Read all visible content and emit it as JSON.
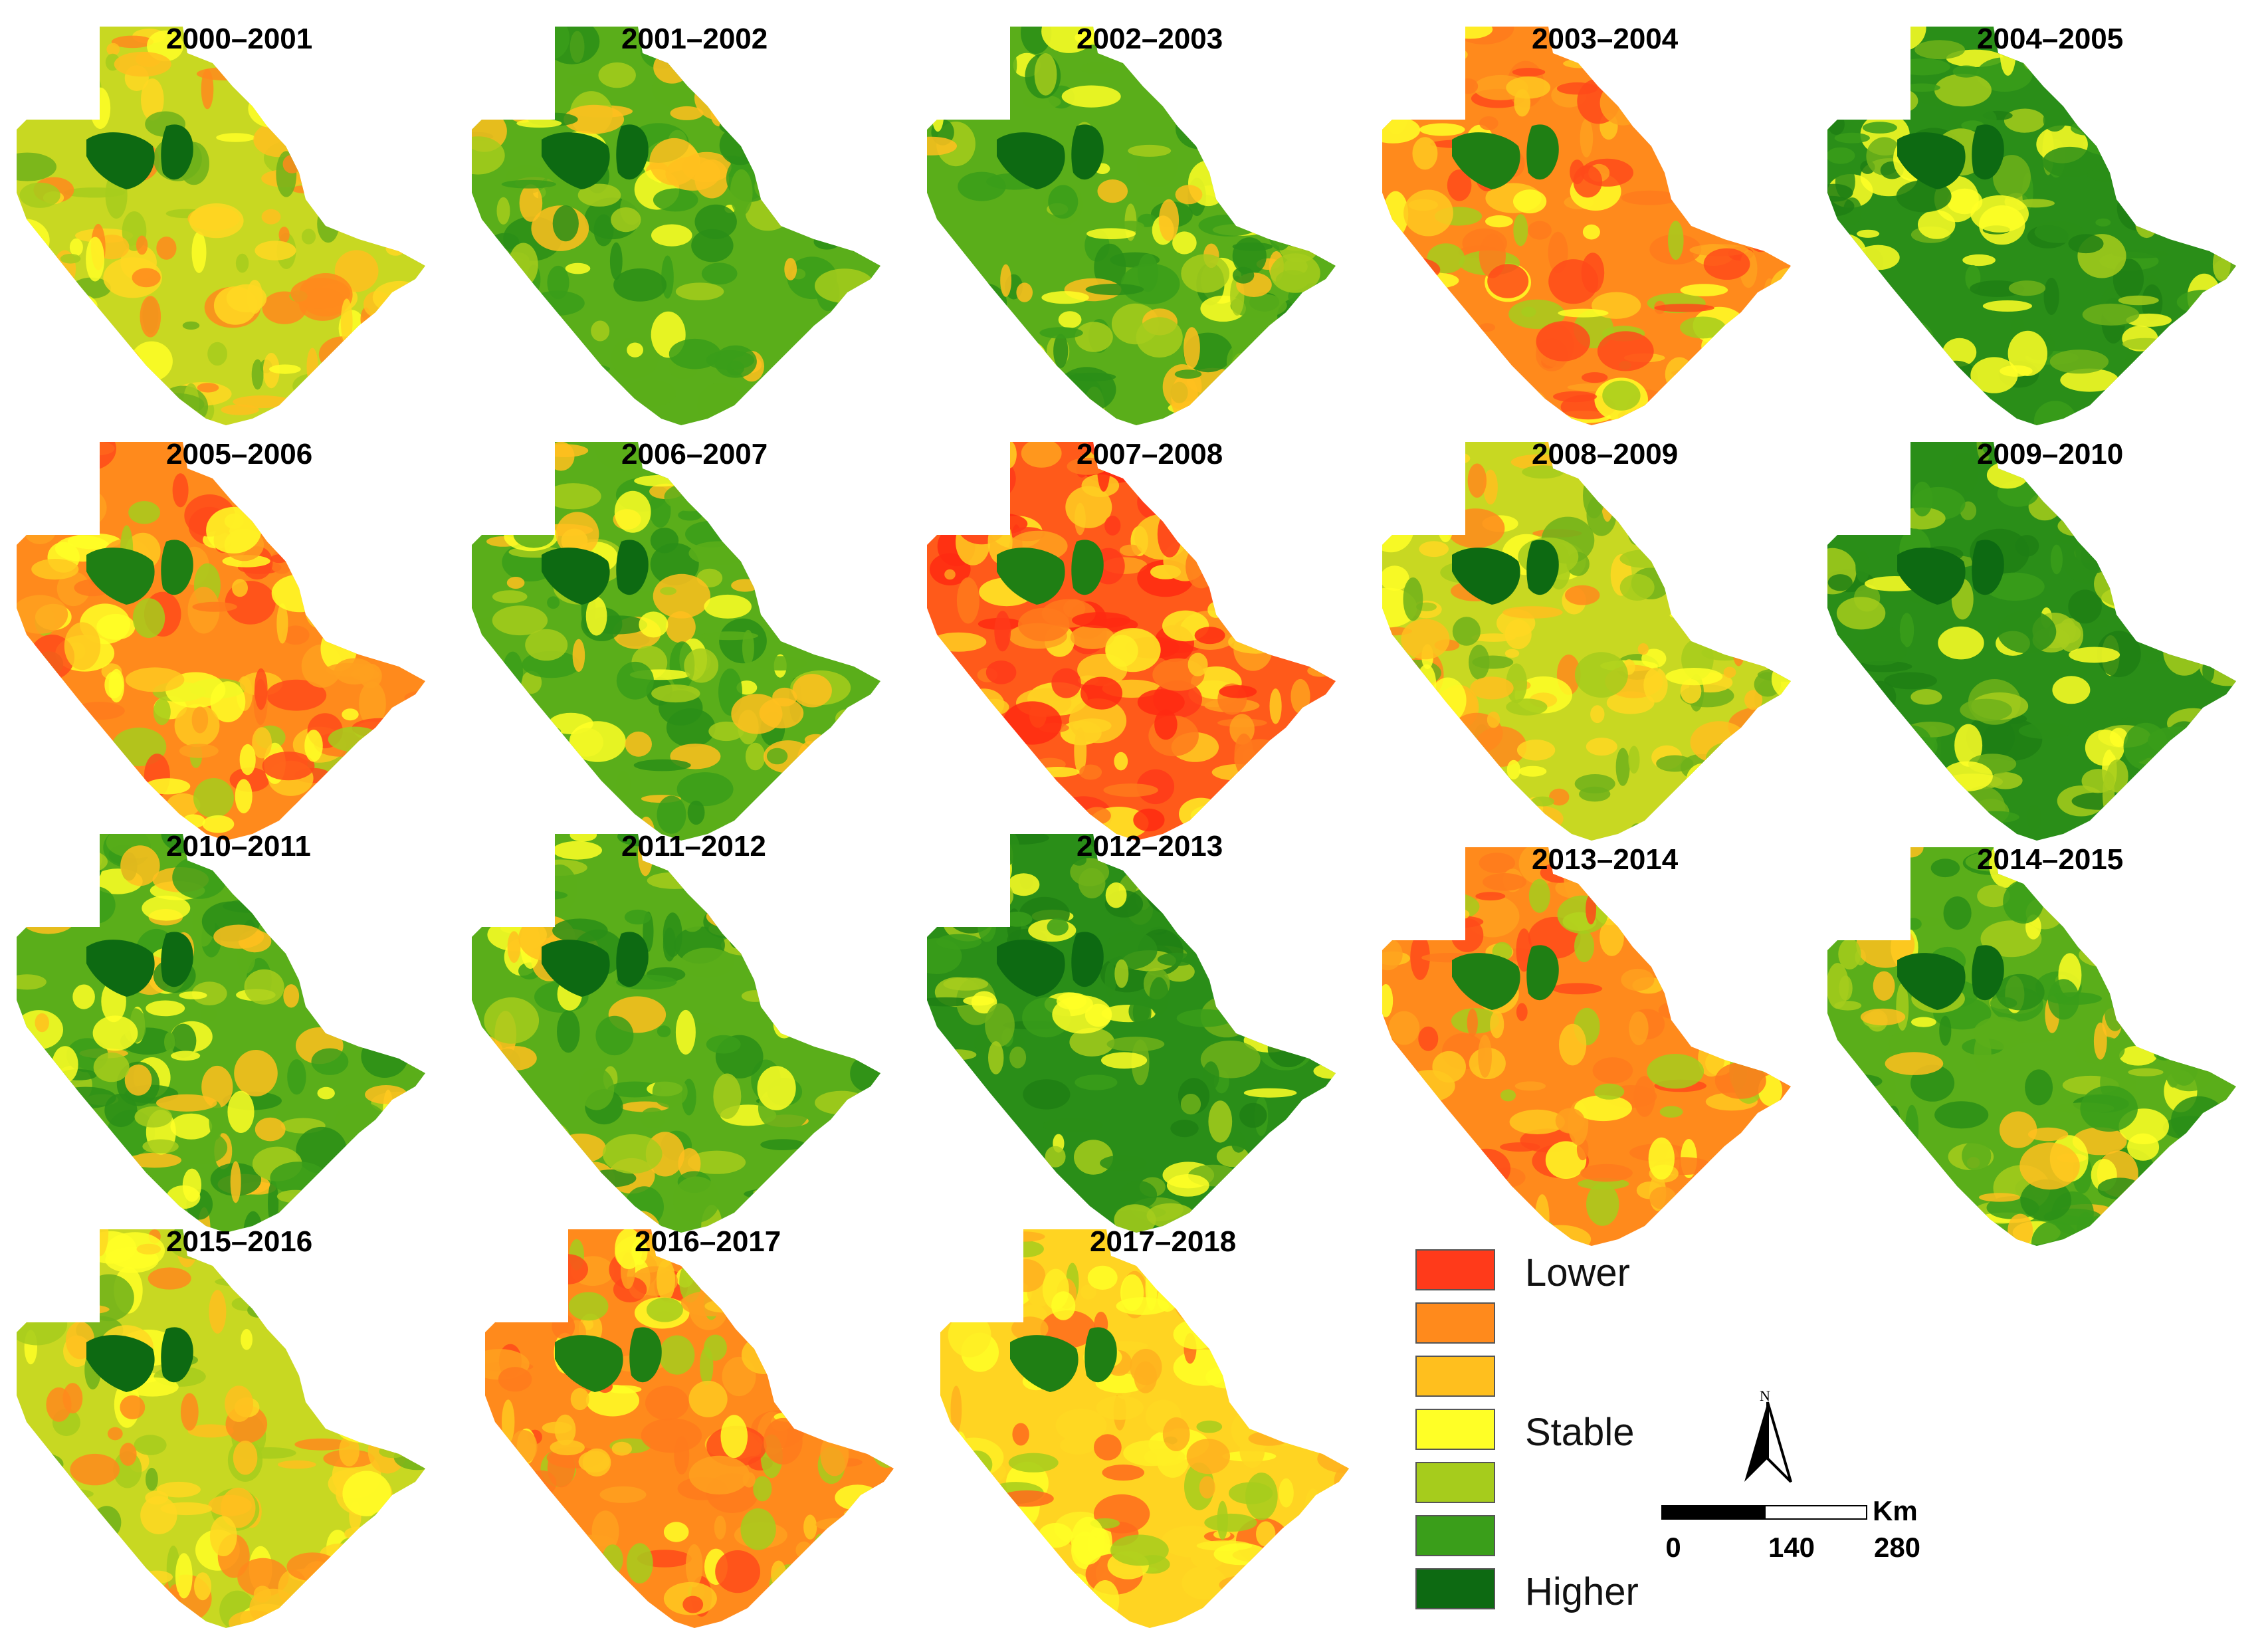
{
  "maps": [
    {
      "title": "2000–2001",
      "trend": "mixed"
    },
    {
      "title": "2001–2002",
      "trend": "greener"
    },
    {
      "title": "2002–2003",
      "trend": "greener"
    },
    {
      "title": "2003–2004",
      "trend": "drier"
    },
    {
      "title": "2004–2005",
      "trend": "greenest"
    },
    {
      "title": "2005–2006",
      "trend": "drier"
    },
    {
      "title": "2006–2007",
      "trend": "greener"
    },
    {
      "title": "2007–2008",
      "trend": "driest"
    },
    {
      "title": "2008–2009",
      "trend": "mixed"
    },
    {
      "title": "2009–2010",
      "trend": "greenest"
    },
    {
      "title": "2010–2011",
      "trend": "greener"
    },
    {
      "title": "2011–2012",
      "trend": "greener"
    },
    {
      "title": "2012–2013",
      "trend": "greenest"
    },
    {
      "title": "2013–2014",
      "trend": "drier"
    },
    {
      "title": "2014–2015",
      "trend": "greener"
    },
    {
      "title": "2015–2016",
      "trend": "mixed"
    },
    {
      "title": "2016–2017",
      "trend": "drier"
    },
    {
      "title": "2017–2018",
      "trend": "dry-yellow"
    }
  ],
  "legend": {
    "items": [
      {
        "label": "Lower",
        "color": "#ff3a1a"
      },
      {
        "label": "",
        "color": "#ff8a1c"
      },
      {
        "label": "",
        "color": "#ffbf1e"
      },
      {
        "label": "Stable",
        "color": "#ffff26"
      },
      {
        "label": "",
        "color": "#a6cc1c"
      },
      {
        "label": "",
        "color": "#3a9e1a"
      },
      {
        "label": "Higher",
        "color": "#0d6a12"
      }
    ]
  },
  "north_arrow": {
    "label": "N"
  },
  "scale_bar": {
    "unit": "Km",
    "ticks": [
      "0",
      "140",
      "280"
    ]
  }
}
